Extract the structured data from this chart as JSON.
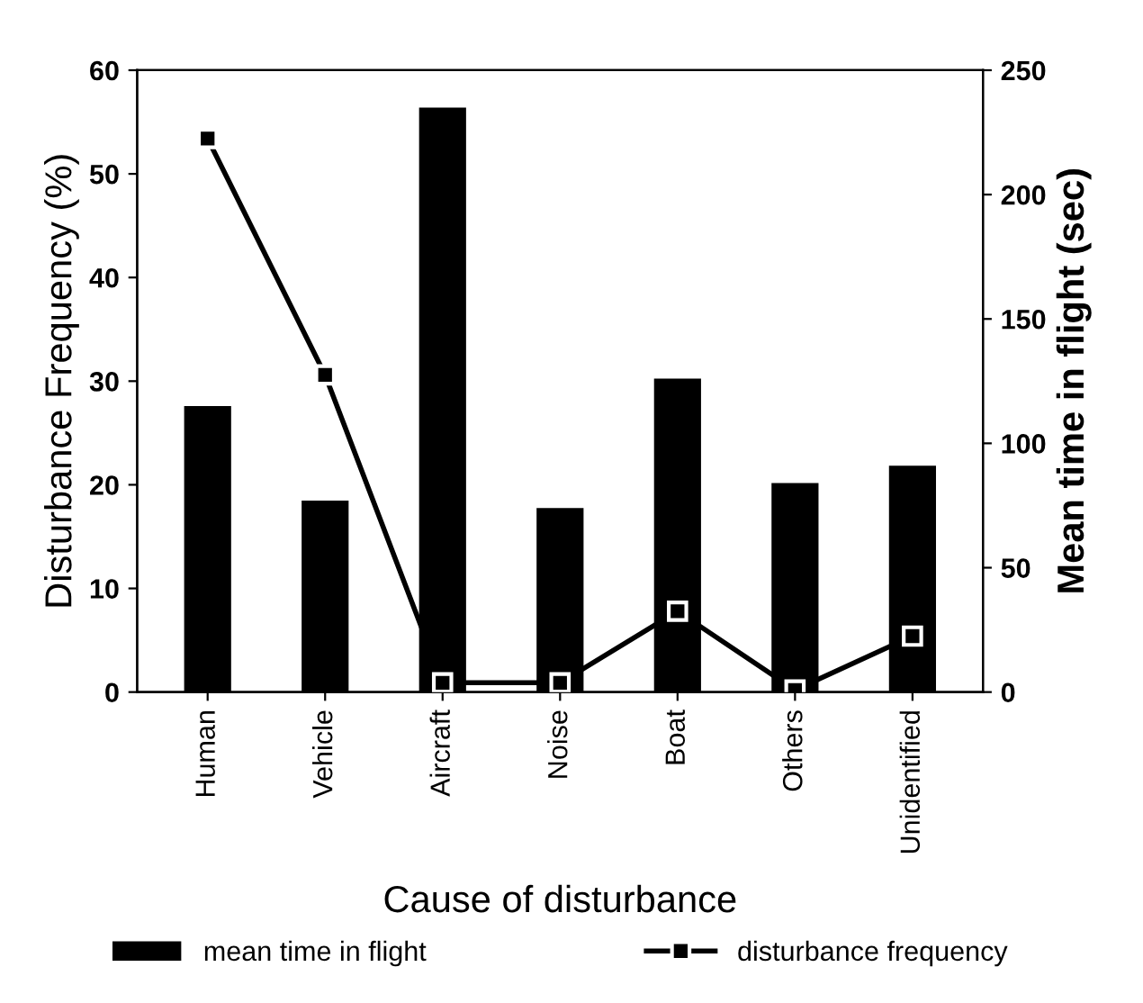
{
  "chart_data": {
    "type": "bar",
    "xlabel": "Cause of disturbance",
    "ylabel": "Disturbance Frequency (%)",
    "y2label": "Mean time in flight (sec)",
    "categories": [
      "Human",
      "Vehicle",
      "Aircraft",
      "Noise",
      "Boat",
      "Others",
      "Unidentified"
    ],
    "series": [
      {
        "name": "mean time in flight",
        "axis": "y2",
        "color": "#000000",
        "values": [
          115,
          77,
          235,
          74,
          126,
          84,
          91
        ]
      },
      {
        "name": "disturbance frequency",
        "type": "line",
        "axis": "y",
        "color": "#000000",
        "values": [
          53.4,
          30.6,
          0.9,
          0.9,
          7.8,
          0.2,
          5.4
        ]
      }
    ],
    "ylim": [
      0,
      60
    ],
    "yticks": [
      0,
      10,
      20,
      30,
      40,
      50,
      60
    ],
    "y2lim": [
      0,
      250
    ],
    "y2ticks": [
      0,
      50,
      100,
      150,
      200,
      250
    ],
    "marker": "square",
    "line_style": "solid",
    "grid": false,
    "legend": "bottom"
  }
}
